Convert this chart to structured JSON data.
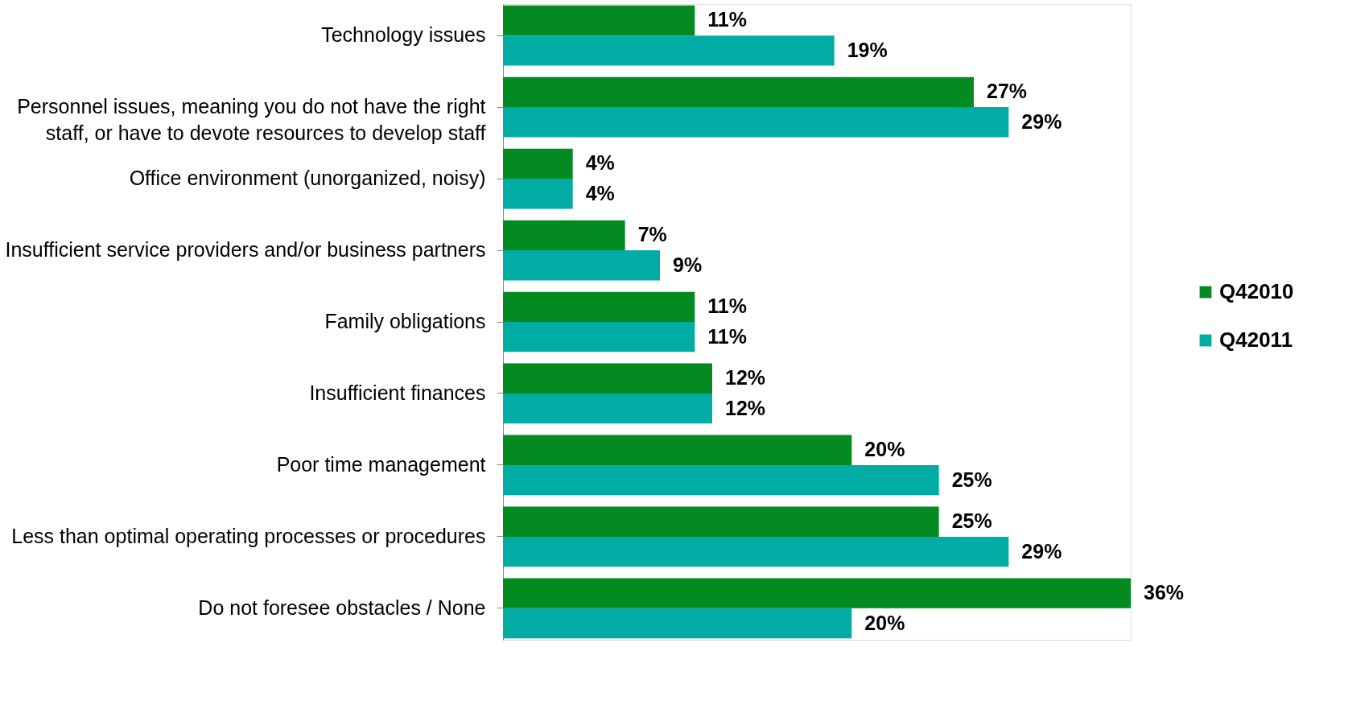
{
  "chart_data": {
    "type": "bar",
    "orientation": "horizontal",
    "legend": "right",
    "categories": [
      "Technology issues",
      "Personnel issues, meaning you do not have the right staff, or have to devote resources to develop staff",
      "Office environment (unorganized, noisy)",
      "Insufficient service providers and/or business partners",
      "Family obligations",
      "Insufficient finances",
      "Poor time management",
      "Less than optimal operating processes or procedures",
      "Do not foresee obstacles / None"
    ],
    "series": [
      {
        "name": "Q42010",
        "color": "#038a21",
        "values": [
          11,
          27,
          4,
          7,
          11,
          12,
          20,
          25,
          36
        ],
        "value_labels": [
          "11%",
          "27%",
          "4%",
          "7%",
          "11%",
          "12%",
          "20%",
          "25%",
          "36%"
        ]
      },
      {
        "name": "Q42011",
        "color": "#01aca4",
        "values": [
          19,
          29,
          4,
          9,
          11,
          12,
          25,
          29,
          20
        ],
        "value_labels": [
          "19%",
          "29%",
          "4%",
          "9%",
          "11%",
          "12%",
          "25%",
          "29%",
          "20%"
        ]
      }
    ]
  }
}
